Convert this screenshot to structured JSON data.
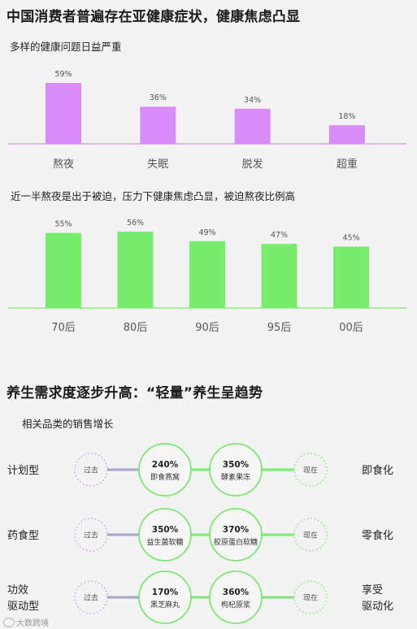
{
  "section1": {
    "title": "中国消费者普遍存在亚健康症状，健康焦虑凸显"
  },
  "chart_data": [
    {
      "type": "bar",
      "title": "多样的健康问题日益严重",
      "categories": [
        "熬夜",
        "失眠",
        "脱发",
        "超重"
      ],
      "values": [
        59,
        36,
        34,
        18
      ],
      "value_labels": [
        "59%",
        "36%",
        "34%",
        "18%"
      ],
      "unit": "%",
      "color": "#d98cf7",
      "ylim": [
        0,
        59
      ],
      "grid": false
    },
    {
      "type": "bar",
      "title": "近一半熬夜是出于被迫，压力下健康焦虑凸显，被迫熬夜比例高",
      "categories": [
        "70后",
        "80后",
        "90后",
        "95后",
        "00后"
      ],
      "values": [
        55,
        56,
        49,
        47,
        45
      ],
      "value_labels": [
        "55%",
        "56%",
        "49%",
        "47%",
        "45%"
      ],
      "unit": "%",
      "color": "#78ec6c",
      "ylim": [
        0,
        56
      ],
      "grid": false
    }
  ],
  "section2": {
    "title": "养生需求度逐步升高：“轻量”养生呈趋势",
    "subtitle": "相关品类的销售增长",
    "rows": [
      {
        "left_label": [
          "计划型"
        ],
        "past": "过去",
        "items": [
          {
            "percent": "240%",
            "name": "即食燕窝"
          },
          {
            "percent": "350%",
            "name": "酵素果冻"
          }
        ],
        "now": "现在",
        "right_label": [
          "即食化"
        ]
      },
      {
        "left_label": [
          "药食型"
        ],
        "past": "过去",
        "items": [
          {
            "percent": "350%",
            "name": "益生菌软糖"
          },
          {
            "percent": "370%",
            "name": "胶原蛋白软糖"
          }
        ],
        "now": "现在",
        "right_label": [
          "零食化"
        ]
      },
      {
        "left_label": [
          "功效",
          "驱动型"
        ],
        "past": "过去",
        "items": [
          {
            "percent": "170%",
            "name": "黑芝麻丸"
          },
          {
            "percent": "360%",
            "name": "枸杞原浆"
          }
        ],
        "now": "现在",
        "right_label": [
          "享受",
          "驱动化"
        ]
      }
    ]
  },
  "colors": {
    "purple_bar": "#d98cf7",
    "green_bar": "#78ec6c",
    "green_circle": "#7be86f",
    "connector": "#a9a3cf",
    "dotted_purple": "#cf9ff0",
    "dotted_green": "#8fe283"
  },
  "watermark": "大数跨境"
}
